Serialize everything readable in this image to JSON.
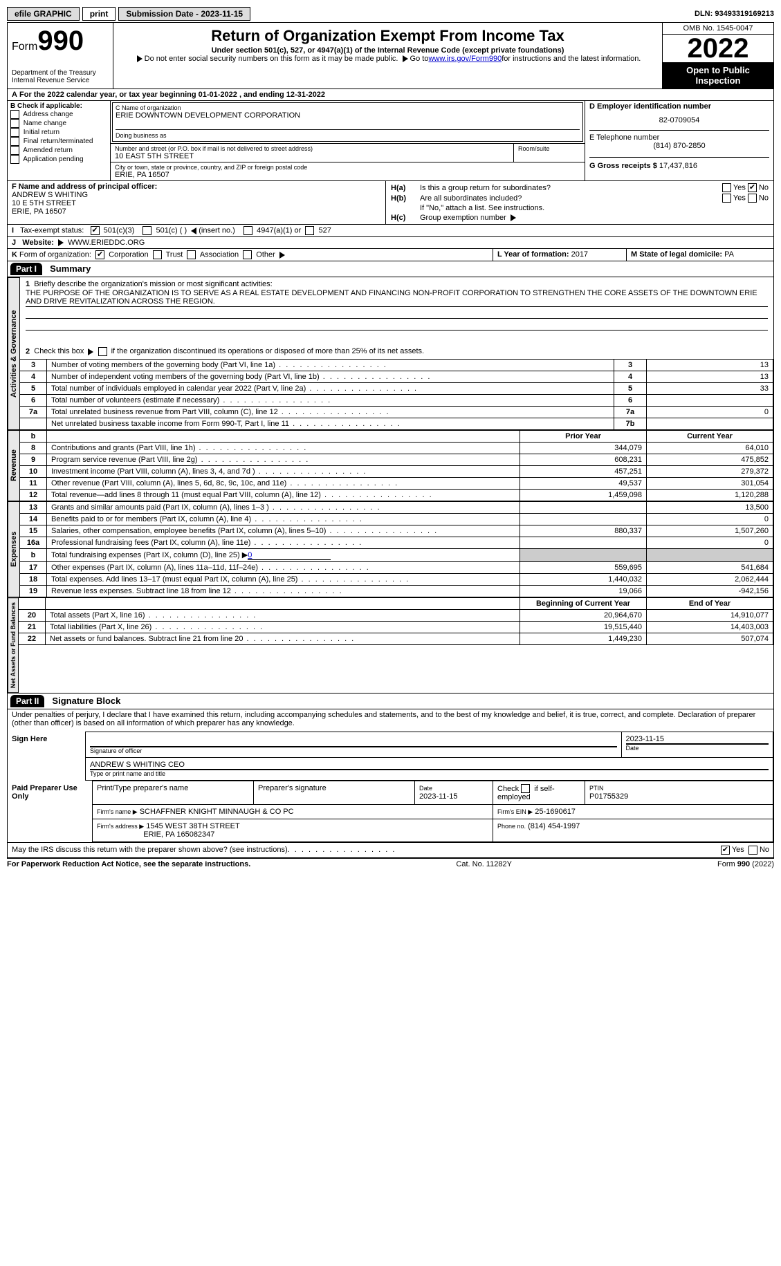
{
  "topbar": {
    "efile_label": "efile GRAPHIC",
    "print_label": "print",
    "submission_label": "Submission Date - 2023-11-15",
    "dln": "DLN: 93493319169213"
  },
  "header": {
    "form_label": "Form",
    "form_number": "990",
    "title": "Return of Organization Exempt From Income Tax",
    "subtitle": "Under section 501(c), 527, or 4947(a)(1) of the Internal Revenue Code (except private foundations)",
    "note1": "Do not enter social security numbers on this form as it may be made public.",
    "note2_pre": "Go to ",
    "note2_link": "www.irs.gov/Form990",
    "note2_post": " for instructions and the latest information.",
    "dept": "Department of the Treasury",
    "irs": "Internal Revenue Service",
    "omb": "OMB No. 1545-0047",
    "year": "2022",
    "open_pub": "Open to Public Inspection"
  },
  "a_line": "For the 2022 calendar year, or tax year beginning 01-01-2022    , and ending 12-31-2022",
  "block_b": {
    "header": "B Check if applicable:",
    "items": [
      "Address change",
      "Name change",
      "Initial return",
      "Final return/terminated",
      "Amended return",
      "Application pending"
    ]
  },
  "block_c": {
    "label_name": "C Name of organization",
    "org_name": "ERIE DOWNTOWN DEVELOPMENT CORPORATION",
    "dba_label": "Doing business as",
    "addr_label": "Number and street (or P.O. box if mail is not delivered to street address)",
    "room_label": "Room/suite",
    "addr": "10 EAST 5TH STREET",
    "city_label": "City or town, state or province, country, and ZIP or foreign postal code",
    "city": "ERIE, PA  16507"
  },
  "block_d": {
    "label": "D Employer identification number",
    "value": "82-0709054"
  },
  "block_e": {
    "label": "E Telephone number",
    "value": "(814) 870-2850"
  },
  "block_g": {
    "label": "G Gross receipts $",
    "value": "17,437,816"
  },
  "block_f": {
    "label": "F  Name and address of principal officer:",
    "name": "ANDREW S WHITING",
    "addr1": "10 E 5TH STREET",
    "addr2": "ERIE, PA  16507"
  },
  "block_h": {
    "ha": "Is this a group return for subordinates?",
    "hb": "Are all subordinates included?",
    "hb_note": "If \"No,\" attach a list. See instructions.",
    "hc": "Group exemption number",
    "yes": "Yes",
    "no": "No",
    "ha_label": "H(a)",
    "hb_label": "H(b)",
    "hc_label": "H(c)"
  },
  "row_i": {
    "label": "Tax-exempt status:",
    "opt1": "501(c)(3)",
    "opt2": "501(c) (  )",
    "opt2_note": "(insert no.)",
    "opt3": "4947(a)(1) or",
    "opt4": "527",
    "prefix": "I"
  },
  "row_j": {
    "prefix": "J",
    "label": "Website:",
    "value": "WWW.ERIEDDC.ORG"
  },
  "row_k": {
    "prefix": "K",
    "label": "Form of organization:",
    "opts": [
      "Corporation",
      "Trust",
      "Association",
      "Other"
    ],
    "l_label": "L Year of formation:",
    "l_value": "2017",
    "m_label": "M State of legal domicile:",
    "m_value": "PA"
  },
  "part1": {
    "label": "Part I",
    "title": "Summary",
    "line1_label": "Briefly describe the organization's mission or most significant activities:",
    "mission": "THE PURPOSE OF THE ORGANIZATION IS TO SERVE AS A REAL ESTATE DEVELOPMENT AND FINANCING NON-PROFIT CORPORATION TO STRENGTHEN THE CORE ASSETS OF THE DOWNTOWN ERIE AND DRIVE REVITALIZATION ACROSS THE REGION.",
    "line2": "Check this box ▶    if the organization discontinued its operations or disposed of more than 25% of its net assets.",
    "tabs": {
      "gov": "Activities & Governance",
      "rev": "Revenue",
      "exp": "Expenses",
      "net": "Net Assets or Fund Balances"
    },
    "headers": {
      "prior": "Prior Year",
      "current": "Current Year",
      "begin": "Beginning of Current Year",
      "end": "End of Year"
    },
    "rows": [
      {
        "n": "3",
        "d": "Number of voting members of the governing body (Part VI, line 1a)",
        "box": "3",
        "v": "13"
      },
      {
        "n": "4",
        "d": "Number of independent voting members of the governing body (Part VI, line 1b)",
        "box": "4",
        "v": "13"
      },
      {
        "n": "5",
        "d": "Total number of individuals employed in calendar year 2022 (Part V, line 2a)",
        "box": "5",
        "v": "33"
      },
      {
        "n": "6",
        "d": "Total number of volunteers (estimate if necessary)",
        "box": "6",
        "v": ""
      },
      {
        "n": "7a",
        "d": "Total unrelated business revenue from Part VIII, column (C), line 12",
        "box": "7a",
        "v": "0"
      },
      {
        "n": "",
        "d": "Net unrelated business taxable income from Form 990-T, Part I, line 11",
        "box": "7b",
        "v": ""
      }
    ],
    "rev_rows": [
      {
        "n": "8",
        "d": "Contributions and grants (Part VIII, line 1h)",
        "p": "344,079",
        "c": "64,010"
      },
      {
        "n": "9",
        "d": "Program service revenue (Part VIII, line 2g)",
        "p": "608,231",
        "c": "475,852"
      },
      {
        "n": "10",
        "d": "Investment income (Part VIII, column (A), lines 3, 4, and 7d )",
        "p": "457,251",
        "c": "279,372"
      },
      {
        "n": "11",
        "d": "Other revenue (Part VIII, column (A), lines 5, 6d, 8c, 9c, 10c, and 11e)",
        "p": "49,537",
        "c": "301,054"
      },
      {
        "n": "12",
        "d": "Total revenue—add lines 8 through 11 (must equal Part VIII, column (A), line 12)",
        "p": "1,459,098",
        "c": "1,120,288"
      }
    ],
    "exp_rows": [
      {
        "n": "13",
        "d": "Grants and similar amounts paid (Part IX, column (A), lines 1–3 )",
        "p": "",
        "c": "13,500"
      },
      {
        "n": "14",
        "d": "Benefits paid to or for members (Part IX, column (A), line 4)",
        "p": "",
        "c": "0"
      },
      {
        "n": "15",
        "d": "Salaries, other compensation, employee benefits (Part IX, column (A), lines 5–10)",
        "p": "880,337",
        "c": "1,507,260"
      },
      {
        "n": "16a",
        "d": "Professional fundraising fees (Part IX, column (A), line 11e)",
        "p": "",
        "c": "0"
      },
      {
        "n": "b",
        "d": "Total fundraising expenses (Part IX, column (D), line 25) ▶",
        "p": "shade",
        "c": "shade",
        "fund": "0"
      },
      {
        "n": "17",
        "d": "Other expenses (Part IX, column (A), lines 11a–11d, 11f–24e)",
        "p": "559,695",
        "c": "541,684"
      },
      {
        "n": "18",
        "d": "Total expenses. Add lines 13–17 (must equal Part IX, column (A), line 25)",
        "p": "1,440,032",
        "c": "2,062,444"
      },
      {
        "n": "19",
        "d": "Revenue less expenses. Subtract line 18 from line 12",
        "p": "19,066",
        "c": "-942,156"
      }
    ],
    "net_rows": [
      {
        "n": "20",
        "d": "Total assets (Part X, line 16)",
        "p": "20,964,670",
        "c": "14,910,077"
      },
      {
        "n": "21",
        "d": "Total liabilities (Part X, line 26)",
        "p": "19,515,440",
        "c": "14,403,003"
      },
      {
        "n": "22",
        "d": "Net assets or fund balances. Subtract line 21 from line 20",
        "p": "1,449,230",
        "c": "507,074"
      }
    ]
  },
  "part2": {
    "label": "Part II",
    "title": "Signature Block",
    "jurat": "Under penalties of perjury, I declare that I have examined this return, including accompanying schedules and statements, and to the best of my knowledge and belief, it is true, correct, and complete. Declaration of preparer (other than officer) is based on all information of which preparer has any knowledge.",
    "sign_here": "Sign Here",
    "sig_officer": "Signature of officer",
    "sig_date_label": "Date",
    "sig_date": "2023-11-15",
    "officer_name": "ANDREW S WHITING  CEO",
    "type_name": "Type or print name and title",
    "paid": "Paid Preparer Use Only",
    "prep_name_label": "Print/Type preparer's name",
    "prep_sig_label": "Preparer's signature",
    "date_label": "Date",
    "prep_date": "2023-11-15",
    "check_if": "Check        if self-employed",
    "ptin_label": "PTIN",
    "ptin": "P01755329",
    "firm_name_label": "Firm's name    ▶",
    "firm_name": "SCHAFFNER KNIGHT MINNAUGH & CO PC",
    "firm_ein_label": "Firm's EIN ▶",
    "firm_ein": "25-1690617",
    "firm_addr_label": "Firm's address ▶",
    "firm_addr1": "1545 WEST 38TH STREET",
    "firm_addr2": "ERIE, PA  165082347",
    "phone_label": "Phone no.",
    "phone": "(814) 454-1997",
    "discuss": "May the IRS discuss this return with the preparer shown above? (see instructions)",
    "yes": "Yes",
    "no": "No"
  },
  "footer": {
    "left": "For Paperwork Reduction Act Notice, see the separate instructions.",
    "mid": "Cat. No. 11282Y",
    "right": "Form 990 (2022)",
    "form_bold": "990"
  },
  "colors": {
    "link": "#0000cc",
    "shade": "#cccccc",
    "tab_bg": "#e8e8e8"
  }
}
